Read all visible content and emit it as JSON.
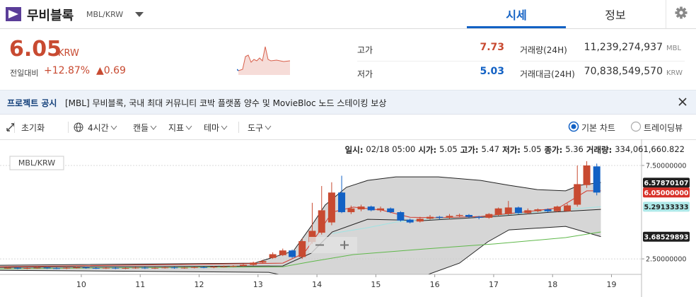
{
  "header": {
    "coin_name": "무비블록",
    "pair": "MBL/KRW",
    "tabs": [
      "시세",
      "정보"
    ]
  },
  "price": {
    "value": "6.05",
    "unit": "KRW",
    "change_label": "전일대비",
    "change_rate": "+12.87%",
    "change_amount": "▲0.69"
  },
  "stats": {
    "high_label": "고가",
    "high": "7.73",
    "low_label": "저가",
    "low": "5.03",
    "volume_label": "거래량(24H)",
    "volume": "11,239,274,937",
    "volume_unit": "MBL",
    "amount_label": "거래대금(24H)",
    "amount": "70,838,549,570",
    "amount_unit": "KRW"
  },
  "notice": {
    "label": "프로젝트 공시",
    "text": "[MBL] 무비블록, 국내 최대 커뮤니티 코박 플랫폼 양수 및 MovieBloc 노드 스테이킹 보상"
  },
  "toolbar": {
    "items": [
      "초기화",
      "4시간",
      "캔들",
      "지표",
      "테마",
      "도구"
    ],
    "modes": [
      "기본 차트",
      "트레이딩뷰"
    ]
  },
  "ohlc_info": [
    {
      "label": "일시:",
      "value": "02/18 05:00"
    },
    {
      "label": "시가:",
      "value": "5.05"
    },
    {
      "label": "고가:",
      "value": "5.47"
    },
    {
      "label": "저가:",
      "value": "5.05"
    },
    {
      "label": "종가:",
      "value": "5.36"
    },
    {
      "label": "거래량:",
      "value": "334,061,660.822"
    }
  ],
  "chart": {
    "type": "candlestick",
    "pair_label": "MBL/KRW",
    "up_color": "#c84a31",
    "down_color": "#1261c4",
    "xlim": [
      8.62,
      19.51
    ],
    "xticks": [
      10,
      11,
      12,
      13,
      14,
      15,
      16,
      17,
      18,
      19
    ],
    "ylim": [
      1.67,
      8.9
    ],
    "yticks": [
      {
        "value": 7.5,
        "label": "7.50000000"
      },
      {
        "value": 2.5,
        "label": "2.50000000"
      }
    ],
    "grid": true,
    "x": [
      8.75,
      8.92,
      9.08,
      9.25,
      9.42,
      9.58,
      9.75,
      9.92,
      10.08,
      10.25,
      10.42,
      10.58,
      10.75,
      10.92,
      11.08,
      11.25,
      11.42,
      11.58,
      11.75,
      11.92,
      12.08,
      12.25,
      12.42,
      12.58,
      12.75,
      12.92,
      13.08,
      13.25,
      13.42,
      13.58,
      13.75,
      13.92,
      14.08,
      14.25,
      14.42,
      14.58,
      14.75,
      14.92,
      15.08,
      15.25,
      15.42,
      15.58,
      15.75,
      15.92,
      16.08,
      16.25,
      16.42,
      16.58,
      16.75,
      16.92,
      17.08,
      17.25,
      17.42,
      17.58,
      17.75,
      17.92,
      18.08,
      18.25,
      18.42,
      18.58,
      18.75
    ],
    "open": [
      2.0,
      2.02,
      1.98,
      2.01,
      2.03,
      2.0,
      1.99,
      2.02,
      2.04,
      2.01,
      2.0,
      2.02,
      1.99,
      2.01,
      2.03,
      2.0,
      2.02,
      2.04,
      2.01,
      2.03,
      2.05,
      2.04,
      2.08,
      2.1,
      2.12,
      2.18,
      2.3,
      2.55,
      2.7,
      2.95,
      2.6,
      3.4,
      3.9,
      4.45,
      6.05,
      5.0,
      5.15,
      5.3,
      5.1,
      5.2,
      5.0,
      4.6,
      4.5,
      4.65,
      4.75,
      4.7,
      4.8,
      4.85,
      4.75,
      4.7,
      4.85,
      4.9,
      5.25,
      4.95,
      5.05,
      5.15,
      5.05,
      5.05,
      5.4,
      6.45,
      7.45
    ],
    "close": [
      2.02,
      1.98,
      2.01,
      2.03,
      2.0,
      1.99,
      2.02,
      2.04,
      2.01,
      2.0,
      2.02,
      1.99,
      2.01,
      2.03,
      2.0,
      2.02,
      2.04,
      2.01,
      2.03,
      2.05,
      2.04,
      2.08,
      2.1,
      2.12,
      2.18,
      2.3,
      2.38,
      2.75,
      2.95,
      2.6,
      3.45,
      4.0,
      5.1,
      6.05,
      5.0,
      5.2,
      5.3,
      5.1,
      5.2,
      5.0,
      4.55,
      4.45,
      4.65,
      4.75,
      4.7,
      4.8,
      4.85,
      4.75,
      4.7,
      4.9,
      5.2,
      5.25,
      4.95,
      5.1,
      5.15,
      5.05,
      5.3,
      5.36,
      6.5,
      7.5,
      6.05
    ],
    "high": [
      2.06,
      2.06,
      2.05,
      2.07,
      2.07,
      2.04,
      2.06,
      2.08,
      2.08,
      2.05,
      2.06,
      2.06,
      2.05,
      2.07,
      2.07,
      2.06,
      2.08,
      2.08,
      2.07,
      2.09,
      2.09,
      2.12,
      2.14,
      2.16,
      2.22,
      2.35,
      2.45,
      2.85,
      3.05,
      3.0,
      3.6,
      5.5,
      6.4,
      6.6,
      6.95,
      5.35,
      5.4,
      5.35,
      5.3,
      5.25,
      5.05,
      4.65,
      4.75,
      4.85,
      4.8,
      4.9,
      4.92,
      4.9,
      4.8,
      4.95,
      5.25,
      5.6,
      5.3,
      5.2,
      5.2,
      5.2,
      5.35,
      5.47,
      7.5,
      7.73,
      7.6
    ],
    "low": [
      1.96,
      1.94,
      1.94,
      1.97,
      1.96,
      1.95,
      1.95,
      1.98,
      1.97,
      1.96,
      1.96,
      1.95,
      1.95,
      1.97,
      1.96,
      1.96,
      1.98,
      1.97,
      1.97,
      1.99,
      2.0,
      2.0,
      2.04,
      2.06,
      2.08,
      2.14,
      2.25,
      2.5,
      2.65,
      2.55,
      2.5,
      3.3,
      3.8,
      4.3,
      4.95,
      4.9,
      5.05,
      5.05,
      5.0,
      4.95,
      4.5,
      4.4,
      4.45,
      4.6,
      4.6,
      4.65,
      4.75,
      4.7,
      4.62,
      4.65,
      4.8,
      4.85,
      4.9,
      4.9,
      5.0,
      5.0,
      5.0,
      5.05,
      5.3,
      6.3,
      5.9
    ],
    "band": {
      "fill": "#c8c8c8",
      "upper": {
        "x": [
          8.62,
          12.94,
          13.6,
          13.9,
          14.14,
          14.5,
          14.86,
          15.34,
          16.06,
          16.78,
          17.26,
          17.74,
          18.22,
          18.46,
          18.82
        ],
        "values": [
          2.16,
          2.27,
          2.92,
          4.24,
          5.38,
          6.33,
          6.7,
          6.89,
          6.89,
          6.7,
          6.44,
          6.21,
          6.14,
          6.44,
          6.59
        ]
      },
      "lower": {
        "x": [
          8.62,
          13.18,
          13.78,
          14.86,
          15.82,
          16.42,
          16.9,
          17.26,
          18.22,
          18.82
        ],
        "values": [
          1.89,
          1.78,
          1.4,
          1.21,
          1.59,
          2.27,
          3.41,
          4.05,
          4.24,
          3.69
        ]
      }
    },
    "lines": [
      {
        "color": "#222222",
        "x": [
          8.62,
          13.42,
          13.9,
          14.26,
          14.86,
          15.82,
          17.02,
          17.98,
          18.82
        ],
        "values": [
          2.05,
          2.12,
          2.8,
          3.94,
          4.62,
          4.55,
          4.77,
          5.0,
          5.15
        ]
      },
      {
        "color": "#5fb84a",
        "x": [
          8.62,
          13.42,
          13.9,
          14.62,
          15.82,
          17.02,
          18.22,
          18.82
        ],
        "values": [
          1.97,
          2.08,
          2.35,
          2.73,
          3.03,
          3.3,
          3.64,
          3.94
        ]
      },
      {
        "color": "#9fe3e3",
        "x": [
          14.26,
          14.86,
          15.34,
          15.82,
          17.02,
          18.22,
          18.82
        ],
        "values": [
          3.86,
          4.17,
          4.47,
          4.62,
          4.81,
          5.15,
          5.29
        ]
      },
      {
        "color": "#d23a2e",
        "x": [
          8.62,
          13.42,
          13.78,
          14.02,
          14.26,
          14.62,
          15.1,
          15.58,
          16.06,
          16.78,
          17.5,
          18.1,
          18.34,
          18.58,
          18.82
        ],
        "values": [
          2.08,
          2.27,
          2.8,
          3.86,
          5.0,
          5.27,
          5.11,
          4.73,
          4.7,
          4.77,
          5.0,
          5.23,
          5.68,
          6.14,
          6.14
        ]
      }
    ],
    "markers": [
      {
        "value": 6.5787,
        "label": "6.57870107",
        "bg": "#1e1e1e",
        "fg": "#ffffff"
      },
      {
        "value": 6.05,
        "label": "6.05000000",
        "bg": "#d8322a",
        "fg": "#ffffff"
      },
      {
        "value": 5.2913,
        "label": "5.29133333",
        "bg": "#aee9e9",
        "fg": "#222222"
      },
      {
        "value": 3.6853,
        "label": "3.68529893",
        "bg": "#1e1e1e",
        "fg": "#ffffff"
      }
    ]
  }
}
